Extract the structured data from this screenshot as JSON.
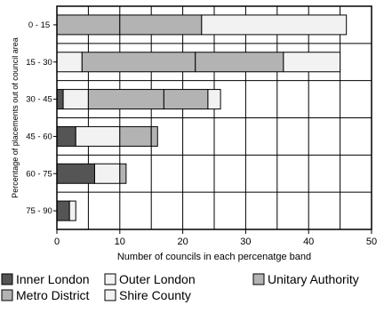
{
  "chart_data": {
    "type": "bar",
    "orientation": "horizontal",
    "stacked": true,
    "xlabel": "Number of councils in each percenatge band",
    "ylabel": "Percentage of placements out of council area",
    "xlim": [
      0,
      50
    ],
    "xticks": [
      0,
      10,
      20,
      30,
      40,
      50
    ],
    "grid": true,
    "legend_position": "bottom",
    "categories": [
      "0 - 15",
      "15 - 30",
      "30 - 45",
      "45 - 60",
      "60 - 75",
      "75 - 90"
    ],
    "series": [
      {
        "name": "Inner London",
        "color": "#555555",
        "values": [
          0,
          0,
          1,
          3,
          6,
          2
        ]
      },
      {
        "name": "Outer London",
        "color": "#f2f2f2",
        "values": [
          0,
          4,
          4,
          7,
          4,
          1
        ]
      },
      {
        "name": "Unitary Authority",
        "color": "#b3b3b3",
        "values": [
          10,
          18,
          12,
          5,
          1,
          0
        ]
      },
      {
        "name": "Metro District",
        "color": "#b3b3b3",
        "values": [
          13,
          14,
          7,
          1,
          0,
          0
        ]
      },
      {
        "name": "Shire County",
        "color": "#f2f2f2",
        "values": [
          23,
          9,
          2,
          0,
          0,
          0
        ]
      }
    ]
  }
}
